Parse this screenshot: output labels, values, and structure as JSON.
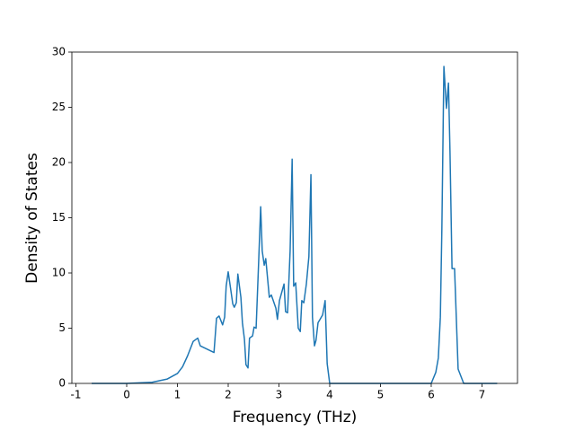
{
  "chart_data": {
    "type": "line",
    "xlabel": "Frequency (THz)",
    "ylabel": "Density of States",
    "xlim": [
      -1.08,
      7.7
    ],
    "ylim": [
      0,
      30
    ],
    "xticks": [
      -1,
      0,
      1,
      2,
      3,
      4,
      5,
      6,
      7
    ],
    "yticks": [
      0,
      5,
      10,
      15,
      20,
      25,
      30
    ],
    "grid": false,
    "series": [
      {
        "name": "DOS",
        "color": "#1f77b4",
        "x": [
          -0.69,
          0,
          0.5,
          0.8,
          1.0,
          1.1,
          1.2,
          1.31,
          1.4,
          1.45,
          1.72,
          1.77,
          1.82,
          1.89,
          1.93,
          1.96,
          2.0,
          2.05,
          2.09,
          2.12,
          2.16,
          2.19,
          2.25,
          2.28,
          2.32,
          2.35,
          2.39,
          2.42,
          2.48,
          2.51,
          2.55,
          2.6,
          2.64,
          2.67,
          2.71,
          2.74,
          2.78,
          2.81,
          2.85,
          2.88,
          2.94,
          2.97,
          3.01,
          3.1,
          3.13,
          3.17,
          3.22,
          3.26,
          3.29,
          3.33,
          3.38,
          3.42,
          3.45,
          3.49,
          3.54,
          3.59,
          3.63,
          3.66,
          3.7,
          3.73,
          3.77,
          3.81,
          3.86,
          3.91,
          3.95,
          4.0,
          6.0,
          6.09,
          6.14,
          6.18,
          6.21,
          6.25,
          6.3,
          6.34,
          6.37,
          6.41,
          6.46,
          6.53,
          6.64,
          7.3
        ],
        "values": [
          0,
          0,
          0.1,
          0.4,
          0.9,
          1.5,
          2.5,
          3.8,
          4.1,
          3.4,
          2.8,
          5.9,
          6.1,
          5.3,
          6.0,
          8.8,
          10.1,
          8.5,
          7.2,
          6.9,
          7.3,
          9.9,
          7.8,
          5.5,
          4.0,
          1.7,
          1.4,
          4.1,
          4.3,
          5.1,
          5.0,
          11.0,
          16.0,
          12.0,
          10.7,
          11.3,
          9.3,
          7.8,
          8.0,
          7.6,
          6.8,
          5.8,
          7.5,
          9.0,
          6.5,
          6.4,
          12.0,
          20.3,
          8.8,
          9.1,
          5.0,
          4.7,
          7.5,
          7.3,
          9.0,
          11.5,
          18.9,
          6.0,
          3.4,
          3.9,
          5.5,
          5.8,
          6.2,
          7.5,
          1.8,
          0,
          0,
          1.0,
          2.3,
          6.0,
          14.0,
          28.7,
          24.9,
          27.2,
          21.0,
          10.4,
          10.4,
          1.3,
          0,
          0
        ]
      }
    ]
  }
}
